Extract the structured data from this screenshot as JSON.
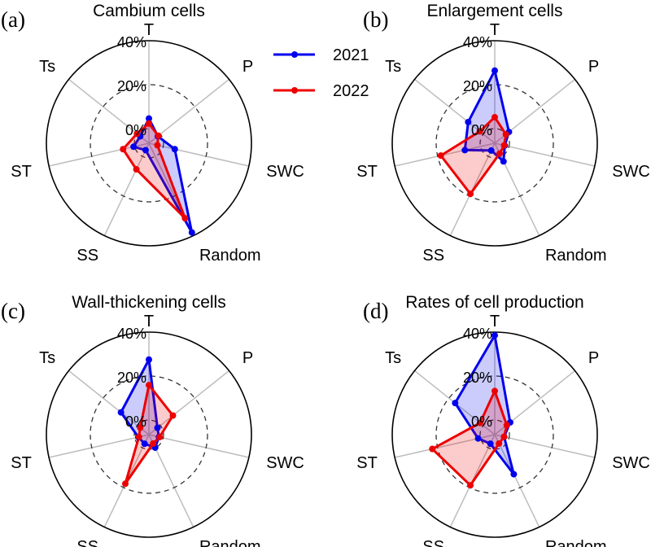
{
  "chart_data": [
    {
      "type": "radar",
      "panel_label": "(a)",
      "title": "Cambium cells",
      "axes": [
        "T",
        "P",
        "SWC",
        "Random",
        "SS",
        "ST",
        "Ts"
      ],
      "radial_range": [
        -6.67,
        40
      ],
      "radial_ticks": [
        "0%",
        "20%",
        "40%"
      ],
      "series": [
        {
          "name": "2021",
          "values": [
            4.6,
            -1.5,
            5.4,
            38.4,
            -3.2,
            0.5,
            -1.6
          ]
        },
        {
          "name": "2022",
          "values": [
            2.3,
            -1.2,
            -2.7,
            31.2,
            6.5,
            5.4,
            0.3
          ]
        }
      ]
    },
    {
      "type": "radar",
      "panel_label": "(b)",
      "title": "Enlargement cells",
      "axes": [
        "T",
        "P",
        "SWC",
        "Random",
        "SS",
        "ST",
        "Ts"
      ],
      "radial_range": [
        -6.67,
        40
      ],
      "radial_ticks": [
        "0%",
        "20%",
        "40%"
      ],
      "series": [
        {
          "name": "2021",
          "values": [
            26.4,
            1.6,
            -2.0,
            2.5,
            -3.0,
            7.3,
            8.8
          ]
        },
        {
          "name": "2022",
          "values": [
            5.2,
            -0.2,
            -2.3,
            -1.5,
            18.9,
            18.5,
            2.0
          ]
        }
      ]
    },
    {
      "type": "radar",
      "panel_label": "(c)",
      "title": "Wall-thickening cells",
      "axes": [
        "T",
        "P",
        "SWC",
        "Random",
        "SS",
        "ST",
        "Ts"
      ],
      "radial_range": [
        -6.67,
        40
      ],
      "radial_ticks": [
        "0%",
        "20%",
        "40%"
      ],
      "series": [
        {
          "name": "2021",
          "values": [
            27.5,
            -1.7,
            -2.0,
            -0.1,
            -2.1,
            -1.7,
            9.6
          ]
        },
        {
          "name": "2022",
          "values": [
            15.9,
            7.3,
            -1.7,
            -2.2,
            18.1,
            -2.0,
            -1.6
          ]
        }
      ]
    },
    {
      "type": "radar",
      "panel_label": "(d)",
      "title": "Rates of cell production",
      "axes": [
        "T",
        "P",
        "SWC",
        "Random",
        "SS",
        "ST",
        "Ts"
      ],
      "radial_range": [
        -6.67,
        40
      ],
      "radial_ticks": [
        "0%",
        "20%",
        "40%"
      ],
      "series": [
        {
          "name": "2021",
          "values": [
            38.5,
            2.3,
            -2.3,
            13.3,
            -2.1,
            1.1,
            16.4
          ]
        },
        {
          "name": "2022",
          "values": [
            13.2,
            0.3,
            -2.3,
            -2.2,
            18.9,
            22.5,
            1.9
          ]
        }
      ]
    }
  ],
  "legend": {
    "placement": "top-center",
    "entries": [
      {
        "name": "2021",
        "color": "#0000ee"
      },
      {
        "name": "2022",
        "color": "#ee0000"
      }
    ]
  }
}
